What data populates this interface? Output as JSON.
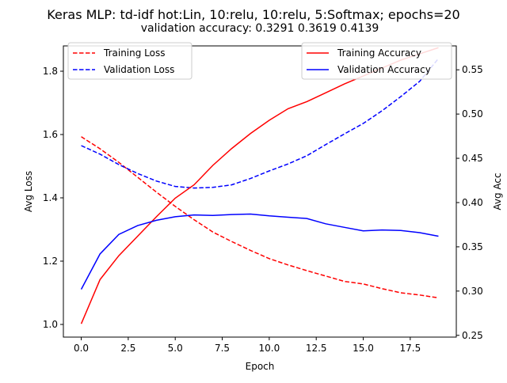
{
  "chart_data": {
    "type": "line",
    "title": "Keras MLP: td-idf hot:Lin, 10:relu, 10:relu, 5:Softmax; epochs=20",
    "subtitle": "validation accuracy:  0.3291  0.3619  0.4139",
    "xlabel": "Epoch",
    "ylabel_left": "Avg Loss",
    "ylabel_right": "Avg Acc",
    "x": [
      0,
      1,
      2,
      3,
      4,
      5,
      6,
      7,
      8,
      9,
      10,
      11,
      12,
      13,
      14,
      15,
      16,
      17,
      18,
      19
    ],
    "xlim": [
      -0.95,
      19.95
    ],
    "ylim_left": [
      0.96,
      1.88
    ],
    "ylim_right": [
      0.248,
      0.577
    ],
    "xticks": [
      0.0,
      2.5,
      5.0,
      7.5,
      10.0,
      12.5,
      15.0,
      17.5
    ],
    "xtick_labels": [
      "0.0",
      "2.5",
      "5.0",
      "7.5",
      "10.0",
      "12.5",
      "15.0",
      "17.5"
    ],
    "yticks_left": [
      1.0,
      1.2,
      1.4,
      1.6,
      1.8
    ],
    "ytick_labels_left": [
      "1.0",
      "1.2",
      "1.4",
      "1.6",
      "1.8"
    ],
    "yticks_right": [
      0.25,
      0.3,
      0.35,
      0.4,
      0.45,
      0.5,
      0.55
    ],
    "ytick_labels_right": [
      "0.25",
      "0.30",
      "0.35",
      "0.40",
      "0.45",
      "0.50",
      "0.55"
    ],
    "grid": false,
    "legend_left_placement": "upper-left",
    "legend_right_placement": "upper-right",
    "series": [
      {
        "name": "Training Loss",
        "axis": "left",
        "color": "#ff0000",
        "dash": "dashed",
        "values": [
          1.593,
          1.555,
          1.512,
          1.465,
          1.418,
          1.373,
          1.331,
          1.292,
          1.262,
          1.234,
          1.208,
          1.188,
          1.17,
          1.153,
          1.136,
          1.128,
          1.113,
          1.1,
          1.093,
          1.084
        ]
      },
      {
        "name": "Validation Loss",
        "axis": "left",
        "color": "#0000ff",
        "dash": "dashed",
        "values": [
          1.565,
          1.538,
          1.505,
          1.477,
          1.453,
          1.436,
          1.431,
          1.433,
          1.441,
          1.461,
          1.485,
          1.507,
          1.533,
          1.568,
          1.602,
          1.635,
          1.675,
          1.72,
          1.768,
          1.84
        ]
      },
      {
        "name": "Training Accuracy",
        "axis": "right",
        "color": "#ff0000",
        "dash": "solid",
        "values": [
          0.263,
          0.313,
          0.34,
          0.362,
          0.384,
          0.405,
          0.42,
          0.442,
          0.461,
          0.478,
          0.493,
          0.506,
          0.514,
          0.524,
          0.534,
          0.543,
          0.552,
          0.561,
          0.568,
          0.575
        ]
      },
      {
        "name": "Validation Accuracy",
        "axis": "right",
        "color": "#0000ff",
        "dash": "solid",
        "values": [
          0.302,
          0.342,
          0.364,
          0.374,
          0.38,
          0.384,
          0.386,
          0.3855,
          0.3865,
          0.387,
          0.385,
          0.3835,
          0.382,
          0.376,
          0.372,
          0.368,
          0.369,
          0.3685,
          0.366,
          0.362
        ]
      }
    ]
  }
}
